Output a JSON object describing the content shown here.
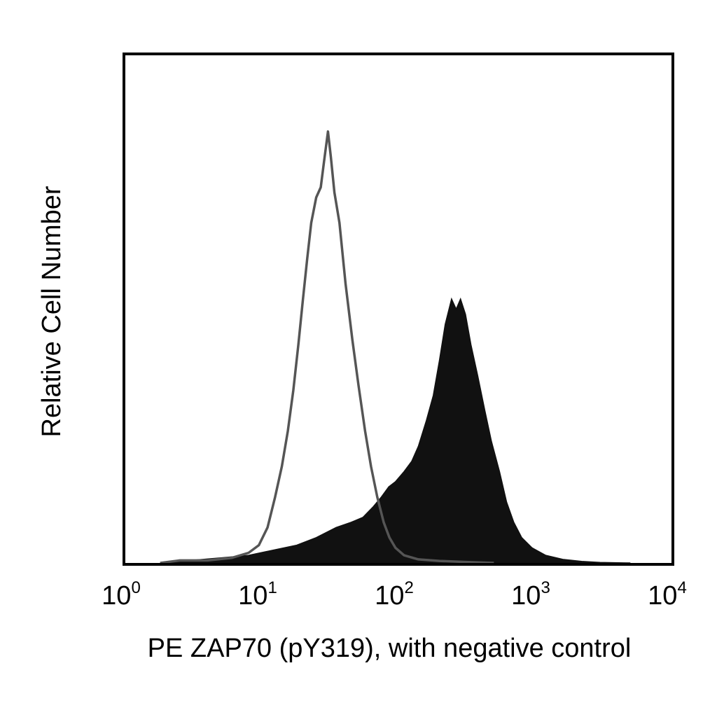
{
  "chart_data": {
    "type": "area",
    "x_scale": "log",
    "xlim": [
      1,
      10000
    ],
    "ylim": [
      0,
      1
    ],
    "xlabel": "PE ZAP70 (pY319), with negative control",
    "ylabel": "Relative Cell Number",
    "x_ticks": [
      {
        "base": "10",
        "exp": "0",
        "value": 1
      },
      {
        "base": "10",
        "exp": "1",
        "value": 10
      },
      {
        "base": "10",
        "exp": "2",
        "value": 100
      },
      {
        "base": "10",
        "exp": "3",
        "value": 1000
      },
      {
        "base": "10",
        "exp": "4",
        "value": 10000
      }
    ],
    "grid": false,
    "legend": "none",
    "series": [
      {
        "style": "outline",
        "color": "#555555",
        "points": [
          [
            1.8,
            0.0
          ],
          [
            2.5,
            0.005
          ],
          [
            4,
            0.005
          ],
          [
            6,
            0.01
          ],
          [
            8,
            0.02
          ],
          [
            9.5,
            0.035
          ],
          [
            11,
            0.07
          ],
          [
            12.5,
            0.13
          ],
          [
            14,
            0.19
          ],
          [
            15.5,
            0.26
          ],
          [
            17,
            0.34
          ],
          [
            18.5,
            0.43
          ],
          [
            20,
            0.52
          ],
          [
            21.5,
            0.6
          ],
          [
            23,
            0.67
          ],
          [
            25,
            0.72
          ],
          [
            27,
            0.74
          ],
          [
            28.5,
            0.79
          ],
          [
            30.5,
            0.85
          ],
          [
            32,
            0.8
          ],
          [
            34,
            0.73
          ],
          [
            37,
            0.67
          ],
          [
            41,
            0.55
          ],
          [
            46,
            0.44
          ],
          [
            51,
            0.35
          ],
          [
            57,
            0.26
          ],
          [
            63,
            0.19
          ],
          [
            70,
            0.13
          ],
          [
            78,
            0.08
          ],
          [
            86,
            0.05
          ],
          [
            95,
            0.03
          ],
          [
            110,
            0.015
          ],
          [
            140,
            0.007
          ],
          [
            200,
            0.004
          ],
          [
            300,
            0.002
          ],
          [
            500,
            0.0
          ]
        ]
      },
      {
        "style": "filled",
        "color": "#111111",
        "points": [
          [
            1.8,
            0.0
          ],
          [
            3,
            0.005
          ],
          [
            5,
            0.01
          ],
          [
            8,
            0.015
          ],
          [
            12,
            0.025
          ],
          [
            18,
            0.035
          ],
          [
            25,
            0.05
          ],
          [
            35,
            0.07
          ],
          [
            45,
            0.08
          ],
          [
            55,
            0.09
          ],
          [
            65,
            0.11
          ],
          [
            75,
            0.13
          ],
          [
            85,
            0.15
          ],
          [
            95,
            0.16
          ],
          [
            110,
            0.18
          ],
          [
            125,
            0.2
          ],
          [
            140,
            0.23
          ],
          [
            160,
            0.28
          ],
          [
            180,
            0.33
          ],
          [
            200,
            0.4
          ],
          [
            220,
            0.47
          ],
          [
            245,
            0.52
          ],
          [
            265,
            0.5
          ],
          [
            285,
            0.52
          ],
          [
            310,
            0.49
          ],
          [
            340,
            0.43
          ],
          [
            380,
            0.37
          ],
          [
            430,
            0.3
          ],
          [
            480,
            0.24
          ],
          [
            550,
            0.18
          ],
          [
            620,
            0.12
          ],
          [
            700,
            0.08
          ],
          [
            800,
            0.05
          ],
          [
            950,
            0.03
          ],
          [
            1200,
            0.015
          ],
          [
            1600,
            0.007
          ],
          [
            2200,
            0.003
          ],
          [
            3000,
            0.001
          ],
          [
            5000,
            0.0
          ]
        ]
      }
    ]
  }
}
